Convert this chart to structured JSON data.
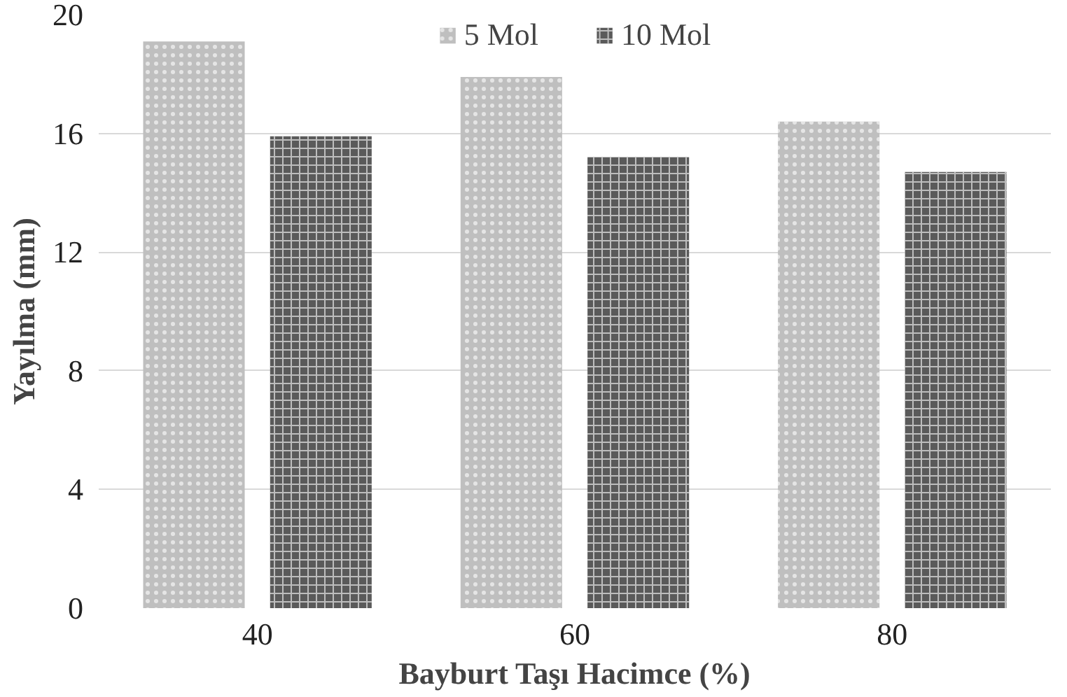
{
  "chart_data": {
    "type": "bar",
    "xlabel": "Bayburt Taşı Hacimce (%)",
    "ylabel": "Yayılma (mm)",
    "categories": [
      "40",
      "60",
      "80"
    ],
    "series": [
      {
        "name": "5 Mol",
        "color": "#bfbfbf",
        "values": [
          19.1,
          17.9,
          16.4
        ]
      },
      {
        "name": "10 Mol",
        "color": "#5a5a5a",
        "values": [
          15.9,
          15.2,
          14.7
        ]
      }
    ],
    "ylim": [
      0,
      20
    ],
    "yticks": [
      0,
      4,
      8,
      12,
      16,
      20
    ],
    "grid": "y",
    "legend": "top"
  }
}
